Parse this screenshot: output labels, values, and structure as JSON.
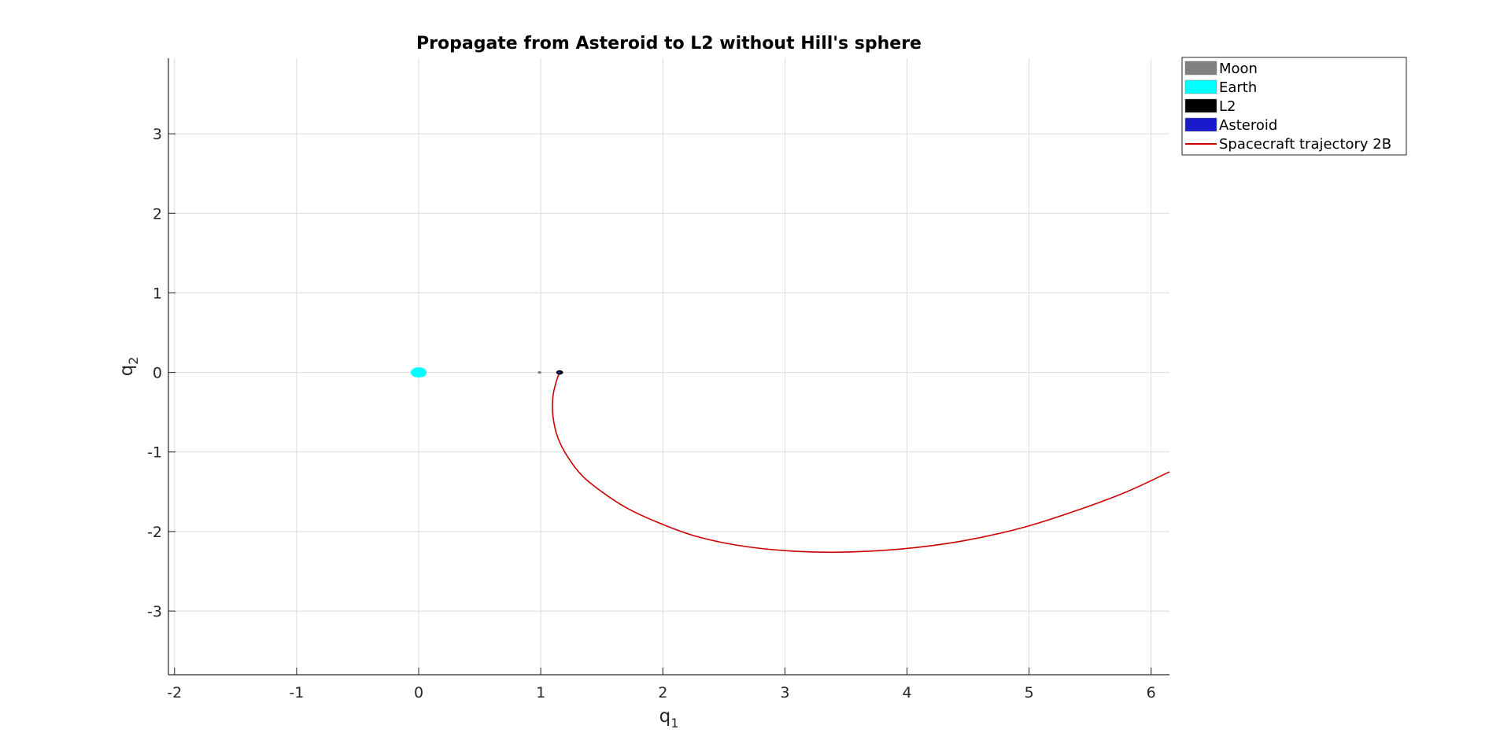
{
  "chart_data": {
    "type": "line",
    "title": "Propagate from Asteroid to L2 without Hill's sphere",
    "xlabel": {
      "base": "q",
      "sub": "1"
    },
    "ylabel": {
      "base": "q",
      "sub": "2"
    },
    "xlim": [
      -2.05,
      6.15
    ],
    "ylim": [
      -3.8,
      3.95
    ],
    "xticks": [
      -2,
      -1,
      0,
      1,
      2,
      3,
      4,
      5,
      6
    ],
    "yticks": [
      -3,
      -2,
      -1,
      0,
      1,
      2,
      3
    ],
    "xtick_labels": [
      "-2",
      "-1",
      "0",
      "1",
      "2",
      "3",
      "4",
      "5",
      "6"
    ],
    "ytick_labels": [
      "-3",
      "-2",
      "-1",
      "0",
      "1",
      "2",
      "3"
    ],
    "grid": true,
    "legend_position": "outside-top-right",
    "bodies": [
      {
        "name": "Moon",
        "color": "#808080",
        "x": 0.99,
        "y": 0.0,
        "rx": 0.016,
        "ry": 0.016
      },
      {
        "name": "Earth",
        "color": "#00ffff",
        "x": 0.0,
        "y": 0.0,
        "rx": 0.065,
        "ry": 0.065
      },
      {
        "name": "L2",
        "color": "#000000",
        "x": 1.155,
        "y": 0.0,
        "rx": 0.028,
        "ry": 0.028
      },
      {
        "name": "Asteroid",
        "color": "#1a1acc",
        "x": 1.15,
        "y": 0.0,
        "rx": 0.008,
        "ry": 0.008
      }
    ],
    "series": [
      {
        "name": "Spacecraft trajectory 2B",
        "color": "#cc0000",
        "x": [
          1.155,
          1.13,
          1.1,
          1.1,
          1.14,
          1.22,
          1.34,
          1.5,
          1.7,
          1.95,
          2.25,
          2.6,
          3.0,
          3.45,
          3.95,
          4.45,
          4.95,
          5.4,
          5.8,
          6.15
        ],
        "y": [
          0.0,
          -0.1,
          -0.3,
          -0.55,
          -0.82,
          -1.06,
          -1.3,
          -1.5,
          -1.7,
          -1.88,
          -2.05,
          -2.17,
          -2.24,
          -2.26,
          -2.22,
          -2.12,
          -1.95,
          -1.73,
          -1.5,
          -1.25
        ]
      }
    ],
    "legend": [
      {
        "label": "Moon",
        "color": "#808080",
        "kind": "patch"
      },
      {
        "label": "Earth",
        "color": "#00ffff",
        "kind": "patch"
      },
      {
        "label": "L2",
        "color": "#000000",
        "kind": "patch"
      },
      {
        "label": "Asteroid",
        "color": "#1a1acc",
        "kind": "patch"
      },
      {
        "label": "Spacecraft trajectory 2B",
        "color": "#cc0000",
        "kind": "line"
      }
    ]
  }
}
